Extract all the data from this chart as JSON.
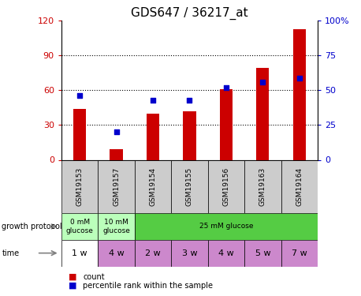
{
  "title": "GDS647 / 36217_at",
  "categories": [
    "GSM19153",
    "GSM19157",
    "GSM19154",
    "GSM19155",
    "GSM19156",
    "GSM19163",
    "GSM19164"
  ],
  "counts": [
    44,
    9,
    40,
    42,
    61,
    79,
    113
  ],
  "percentile_ranks": [
    46,
    20,
    43,
    43,
    52,
    56,
    59
  ],
  "count_ylim": [
    0,
    120
  ],
  "count_yticks": [
    0,
    30,
    60,
    90,
    120
  ],
  "percentile_ylim": [
    0,
    100
  ],
  "percentile_yticks": [
    0,
    25,
    50,
    75,
    100
  ],
  "percentile_yticklabels": [
    "0",
    "25",
    "50",
    "75",
    "100%"
  ],
  "bar_color": "#cc0000",
  "scatter_color": "#0000cc",
  "bar_width": 0.35,
  "growth_regions": [
    {
      "start": 0,
      "end": 1,
      "label": "0 mM\nglucose",
      "color": "#bbffbb"
    },
    {
      "start": 1,
      "end": 2,
      "label": "10 mM\nglucose",
      "color": "#bbffbb"
    },
    {
      "start": 2,
      "end": 7,
      "label": "25 mM glucose",
      "color": "#55cc44"
    }
  ],
  "time_labels": [
    "1 w",
    "4 w",
    "2 w",
    "3 w",
    "4 w",
    "5 w",
    "7 w"
  ],
  "time_colors": [
    "#ffffff",
    "#cc88cc",
    "#cc88cc",
    "#cc88cc",
    "#cc88cc",
    "#cc88cc",
    "#cc88cc"
  ],
  "left_label_color": "#cc0000",
  "right_label_color": "#0000cc",
  "xticklabels_bg": "#cccccc",
  "legend_bar_color": "#cc0000",
  "legend_scatter_color": "#0000cc"
}
